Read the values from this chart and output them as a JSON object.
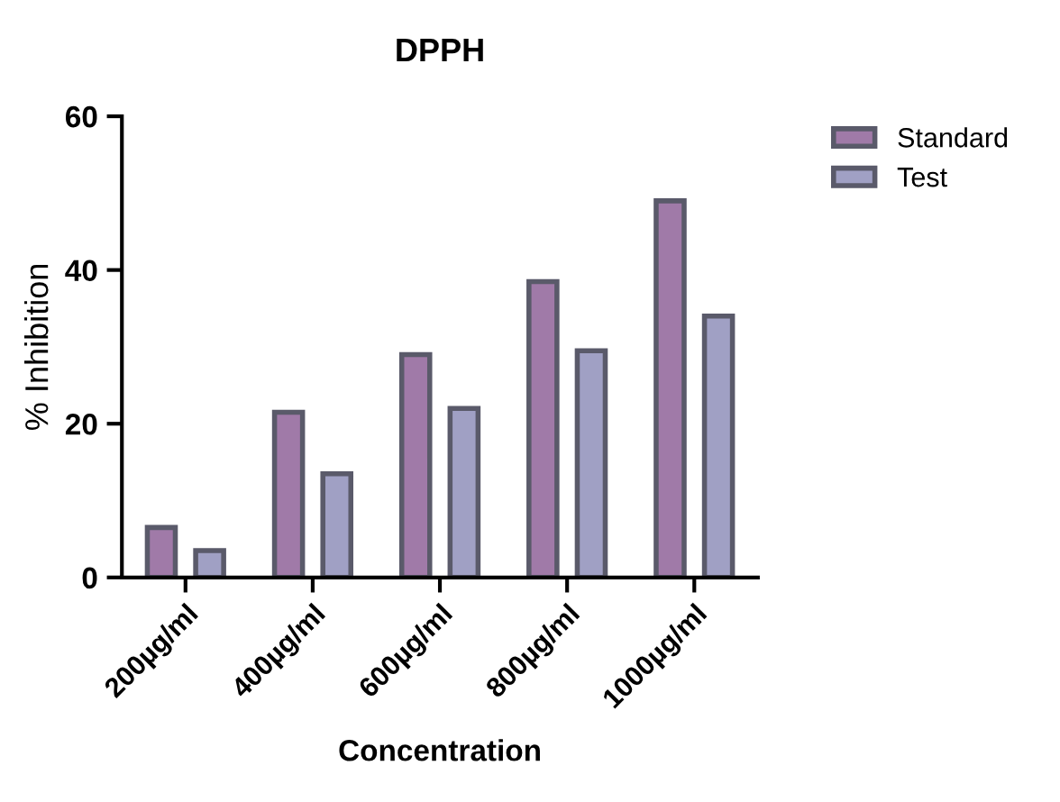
{
  "chart_data": {
    "type": "bar",
    "title": "DPPH",
    "xlabel": "Concentration",
    "ylabel": "% Inhibition",
    "categories": [
      "200µg/ml",
      "400µg/ml",
      "600µg/ml",
      "800µg/ml",
      "1000µg/ml"
    ],
    "series": [
      {
        "name": "Standard",
        "color": "#a07aa8",
        "values": [
          6.5,
          21.5,
          29,
          38.5,
          49
        ]
      },
      {
        "name": "Test",
        "color": "#a0a0c4",
        "values": [
          3.5,
          13.5,
          22,
          29.5,
          34
        ]
      }
    ],
    "ylim": [
      0,
      60
    ],
    "yticks": [
      0,
      20,
      40,
      60
    ],
    "grid": false,
    "legend": "top right"
  }
}
